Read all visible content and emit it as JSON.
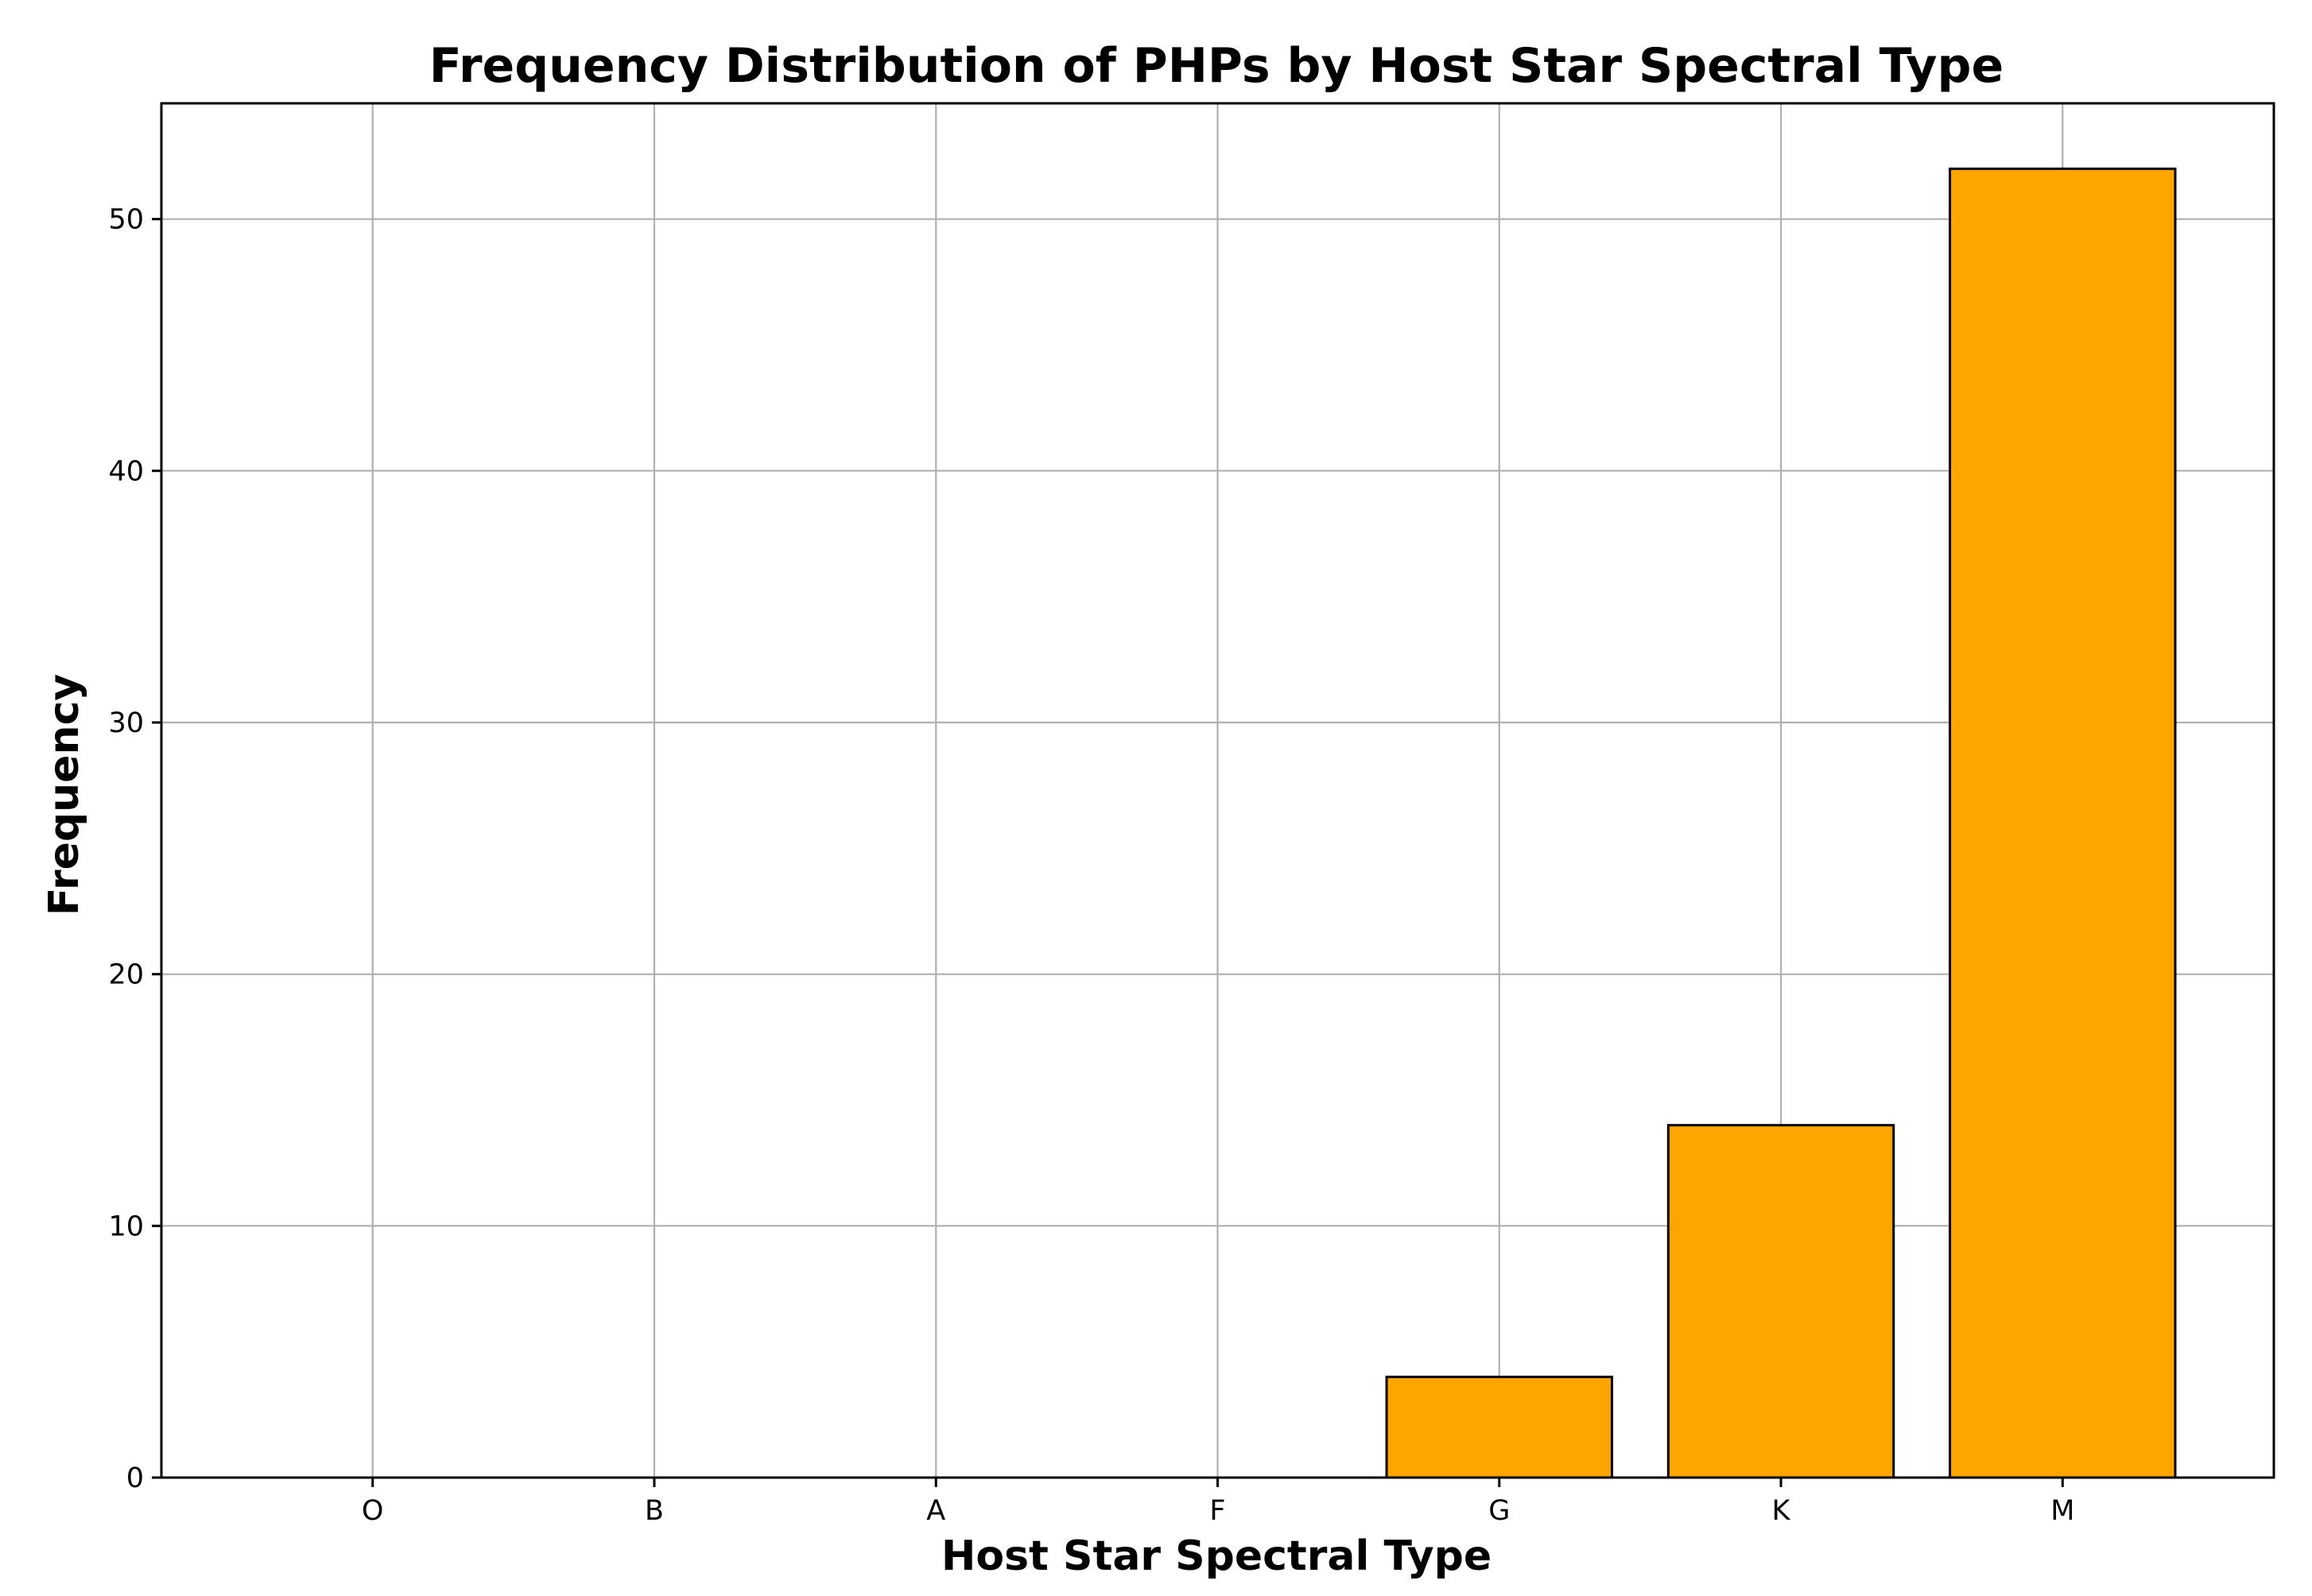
{
  "chart_data": {
    "type": "bar",
    "title": "Frequency Distribution of PHPs by Host Star Spectral Type",
    "xlabel": "Host Star Spectral Type",
    "ylabel": "Frequency",
    "categories": [
      "O",
      "B",
      "A",
      "F",
      "G",
      "K",
      "M"
    ],
    "values": [
      0,
      0,
      0,
      0,
      4,
      14,
      52
    ],
    "ylim": [
      0,
      54.6
    ],
    "yticks": [
      0,
      10,
      20,
      30,
      40,
      50
    ],
    "grid": true,
    "bar_color": "#FFA500",
    "bar_edge_color": "#000000"
  }
}
